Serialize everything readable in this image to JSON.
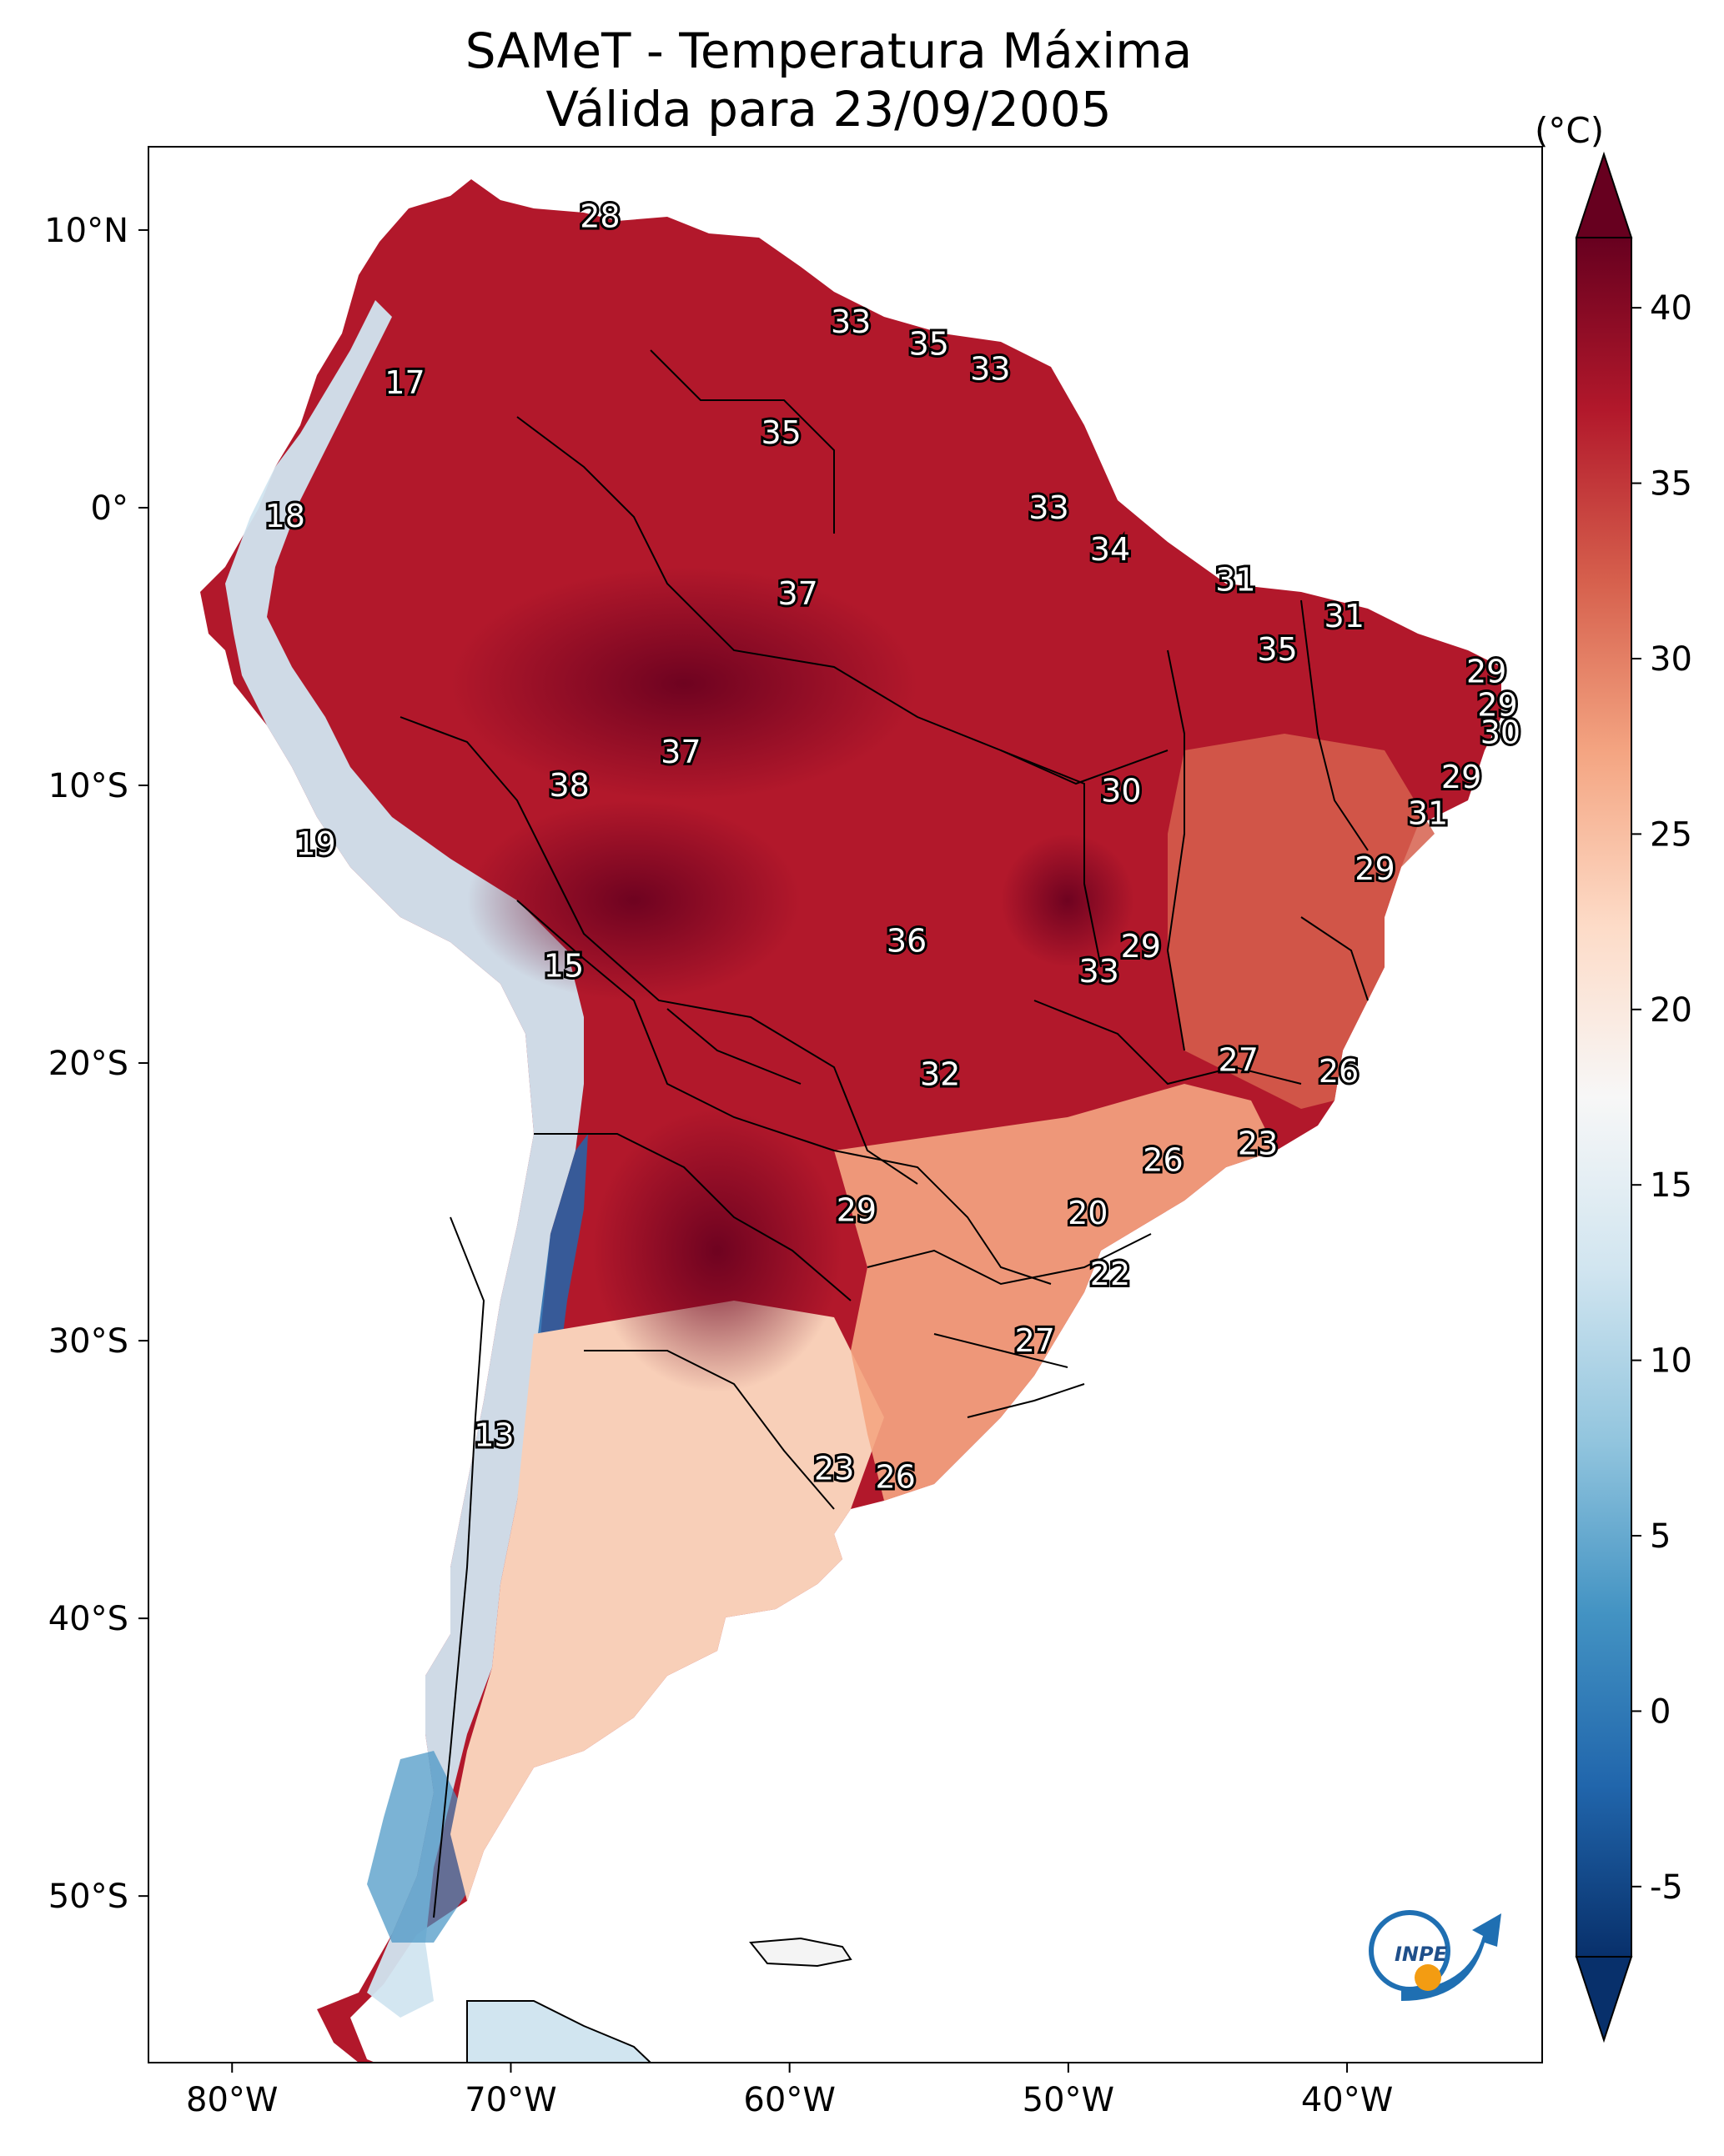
{
  "title": {
    "line1": "SAMeT - Temperatura Máxima",
    "line2": "Válida para 23/09/2005"
  },
  "colorbar": {
    "unit": "(°C)",
    "min": -7,
    "max": 42,
    "ticks": [
      "-5",
      "0",
      "5",
      "10",
      "15",
      "20",
      "25",
      "30",
      "35",
      "40"
    ],
    "tick_values": [
      -5,
      0,
      5,
      10,
      15,
      20,
      25,
      30,
      35,
      40
    ],
    "colors": [
      "#08306b",
      "#2166ac",
      "#4393c3",
      "#92c5de",
      "#d1e5f0",
      "#f7f7f7",
      "#fddbc7",
      "#f4a582",
      "#d6604d",
      "#b2182b",
      "#67001f"
    ]
  },
  "axes": {
    "lon_labels": [
      "80°W",
      "70°W",
      "60°W",
      "50°W",
      "40°W"
    ],
    "lon_values": [
      -80,
      -70,
      -60,
      -50,
      -40
    ],
    "lat_labels": [
      "10°N",
      "0°",
      "10°S",
      "20°S",
      "30°S",
      "40°S",
      "50°S"
    ],
    "lat_values": [
      10,
      0,
      -10,
      -20,
      -30,
      -40,
      -50
    ],
    "lon_range": [
      -83,
      -33
    ],
    "lat_range": [
      -56,
      13
    ]
  },
  "station_values": [
    {
      "value": "28",
      "lon": -66.8,
      "lat": 10.5
    },
    {
      "value": "33",
      "lon": -57.8,
      "lat": 6.7
    },
    {
      "value": "35",
      "lon": -55.0,
      "lat": 5.9
    },
    {
      "value": "33",
      "lon": -52.8,
      "lat": 5.0
    },
    {
      "value": "17",
      "lon": -73.8,
      "lat": 4.5
    },
    {
      "value": "35",
      "lon": -60.3,
      "lat": 2.7
    },
    {
      "value": "18",
      "lon": -78.1,
      "lat": -0.3
    },
    {
      "value": "33",
      "lon": -50.7,
      "lat": 0.0
    },
    {
      "value": "34",
      "lon": -48.5,
      "lat": -1.5
    },
    {
      "value": "31",
      "lon": -44.0,
      "lat": -2.6
    },
    {
      "value": "37",
      "lon": -59.7,
      "lat": -3.1
    },
    {
      "value": "31",
      "lon": -40.1,
      "lat": -3.9
    },
    {
      "value": "35",
      "lon": -42.5,
      "lat": -5.1
    },
    {
      "value": "29",
      "lon": -35.0,
      "lat": -5.9
    },
    {
      "value": "29",
      "lon": -34.6,
      "lat": -7.1
    },
    {
      "value": "30",
      "lon": -34.5,
      "lat": -8.1
    },
    {
      "value": "37",
      "lon": -63.9,
      "lat": -8.8
    },
    {
      "value": "38",
      "lon": -67.9,
      "lat": -10.0
    },
    {
      "value": "30",
      "lon": -48.1,
      "lat": -10.2
    },
    {
      "value": "29",
      "lon": -35.9,
      "lat": -9.7
    },
    {
      "value": "31",
      "lon": -37.1,
      "lat": -11.0
    },
    {
      "value": "19",
      "lon": -77.0,
      "lat": -12.1
    },
    {
      "value": "29",
      "lon": -39.0,
      "lat": -13.0
    },
    {
      "value": "15",
      "lon": -68.1,
      "lat": -16.5
    },
    {
      "value": "36",
      "lon": -55.8,
      "lat": -15.6
    },
    {
      "value": "29",
      "lon": -47.4,
      "lat": -15.8
    },
    {
      "value": "33",
      "lon": -48.9,
      "lat": -16.7
    },
    {
      "value": "32",
      "lon": -54.6,
      "lat": -20.4
    },
    {
      "value": "27",
      "lon": -43.9,
      "lat": -19.9
    },
    {
      "value": "26",
      "lon": -40.3,
      "lat": -20.3
    },
    {
      "value": "23",
      "lon": -43.2,
      "lat": -22.9
    },
    {
      "value": "26",
      "lon": -46.6,
      "lat": -23.5
    },
    {
      "value": "29",
      "lon": -57.6,
      "lat": -25.3
    },
    {
      "value": "20",
      "lon": -49.3,
      "lat": -25.4
    },
    {
      "value": "22",
      "lon": -48.5,
      "lat": -27.6
    },
    {
      "value": "27",
      "lon": -51.2,
      "lat": -30.0
    },
    {
      "value": "13",
      "lon": -70.6,
      "lat": -33.4
    },
    {
      "value": "23",
      "lon": -58.4,
      "lat": -34.6
    },
    {
      "value": "26",
      "lon": -56.2,
      "lat": -34.9
    }
  ],
  "logo": {
    "text": "INPE"
  }
}
